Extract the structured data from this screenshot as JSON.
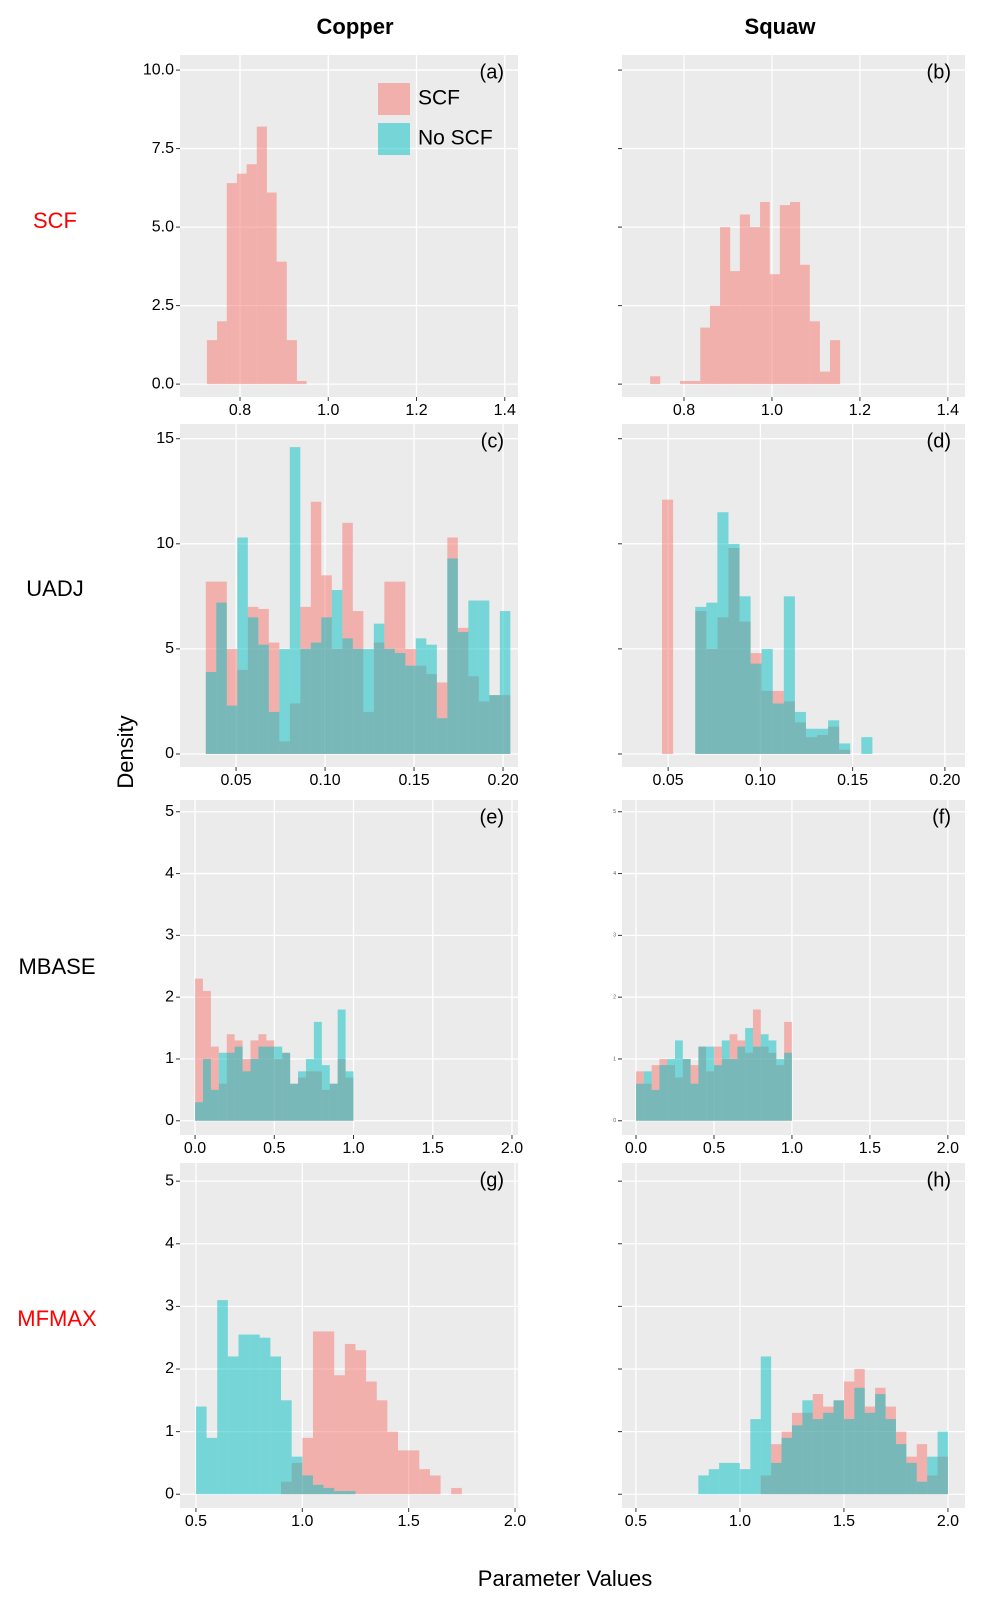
{
  "column_titles": [
    "Copper",
    "Squaw"
  ],
  "row_labels": [
    {
      "text": "SCF",
      "color": "#ff0000"
    },
    {
      "text": "UADJ",
      "color": "#000000"
    },
    {
      "text": "MBASE",
      "color": "#000000"
    },
    {
      "text": "MFMAX",
      "color": "#ff0000"
    }
  ],
  "ylabel": "Density",
  "xlabel": "Parameter Values",
  "chart_data": [
    {
      "type": "histogram",
      "label": "(a)",
      "legend": "top-right",
      "ytick_labels": true,
      "xlim": [
        0.664,
        1.43
      ],
      "xticks": [
        0.8,
        {
          "value": 1,
          "label": "1.0"
        },
        1.2,
        1.4
      ],
      "ylim": [
        -0.41,
        10.48
      ],
      "yticks": [
        {
          "value": 0,
          "label": "0.0"
        },
        2.5,
        {
          "value": 5,
          "label": "5.0"
        },
        7.5,
        {
          "value": 10,
          "label": "10.0"
        }
      ],
      "bins": [
        0.725,
        0.748,
        0.77,
        0.793,
        0.815,
        0.838,
        0.861,
        0.883,
        0.906,
        0.929,
        0.951
      ],
      "series": [
        {
          "name": "SCF",
          "color": "#F8766D",
          "values": [
            1.4,
            2.0,
            6.4,
            6.7,
            7.0,
            8.2,
            6.1,
            3.9,
            1.4,
            0.1
          ]
        },
        {
          "name": "No SCF",
          "color": "#00BFC4",
          "values": []
        }
      ]
    },
    {
      "type": "histogram",
      "label": "(b)",
      "ytick_labels": false,
      "xlim": [
        0.659,
        1.439
      ],
      "xticks": [
        0.8,
        {
          "value": 1,
          "label": "1.0"
        },
        1.2,
        1.4
      ],
      "ylim": [
        -0.41,
        10.48
      ],
      "yticks": [
        0,
        2.5,
        5,
        7.5,
        10
      ],
      "bins": [
        0.723,
        0.746,
        0.768,
        0.791,
        0.814,
        0.837,
        0.859,
        0.882,
        0.905,
        0.927,
        0.95,
        0.973,
        0.995,
        1.018,
        1.041,
        1.064,
        1.086,
        1.109,
        1.132,
        1.155
      ],
      "series": [
        {
          "color": "#F8766D",
          "values": [
            0.25,
            0,
            0,
            0.1,
            0.1,
            1.8,
            2.5,
            5.0,
            3.6,
            5.4,
            5.0,
            5.8,
            3.5,
            5.7,
            5.8,
            3.8,
            2.0,
            0.4,
            1.4
          ]
        }
      ]
    },
    {
      "type": "histogram",
      "label": "(c)",
      "ytick_labels": true,
      "xlim": [
        0.0185,
        0.2084
      ],
      "xticks": [
        0.05,
        {
          "value": 0.1,
          "label": "0.10"
        },
        0.15,
        {
          "value": 0.2,
          "label": "0.20"
        }
      ],
      "ylim": [
        -0.62,
        15.7
      ],
      "yticks": [
        0,
        5,
        10,
        15
      ],
      "bins": [
        0.033,
        0.0389,
        0.0448,
        0.0507,
        0.0566,
        0.0625,
        0.0684,
        0.0743,
        0.0802,
        0.0861,
        0.092,
        0.0979,
        0.1038,
        0.1097,
        0.1156,
        0.1215,
        0.1274,
        0.1333,
        0.1392,
        0.1451,
        0.151,
        0.1569,
        0.1628,
        0.1687,
        0.1746,
        0.1805,
        0.1864,
        0.1923,
        0.1982,
        0.2041
      ],
      "series": [
        {
          "color": "#F8766D",
          "values": [
            8.2,
            8.2,
            5.0,
            4.0,
            7.0,
            6.9,
            5.3,
            0.6,
            2.4,
            7.0,
            12.0,
            8.5,
            5.0,
            11.0,
            6.8,
            2.0,
            5.3,
            8.2,
            8.2,
            5.0,
            4.2,
            3.8,
            3.4,
            10.3,
            6.0,
            3.7,
            2.5,
            2.8,
            2.8
          ]
        },
        {
          "color": "#00BFC4",
          "values": [
            3.9,
            7.2,
            2.3,
            10.3,
            6.5,
            5.2,
            2.0,
            5.0,
            14.6,
            5.0,
            5.3,
            6.5,
            7.8,
            5.5,
            5.0,
            5.0,
            6.2,
            5.0,
            4.8,
            4.2,
            5.5,
            5.2,
            1.7,
            9.3,
            5.8,
            7.3,
            7.3,
            2.8,
            6.8
          ]
        }
      ]
    },
    {
      "type": "histogram",
      "label": "(d)",
      "ytick_labels": false,
      "xlim": [
        0.025,
        0.2109
      ],
      "xticks": [
        0.05,
        {
          "value": 0.1,
          "label": "0.10"
        },
        0.15,
        {
          "value": 0.2,
          "label": "0.20"
        }
      ],
      "ylim": [
        -0.62,
        15.7
      ],
      "yticks": [
        0,
        5,
        10,
        15
      ],
      "bins": [
        0.0467,
        0.0527,
        0.0587,
        0.0647,
        0.0707,
        0.0767,
        0.0827,
        0.0887,
        0.0947,
        0.1007,
        0.1067,
        0.1127,
        0.1187,
        0.1247,
        0.1307,
        0.1367,
        0.1427,
        0.1487,
        0.1547,
        0.1607
      ],
      "series": [
        {
          "color": "#F8766D",
          "values": [
            12.1,
            0,
            0,
            6.8,
            5.0,
            6.5,
            9.8,
            6.3,
            4.8,
            3.0,
            3.0,
            2.5,
            1.5,
            0.8,
            0.9,
            1.3,
            0.2,
            0,
            0
          ]
        },
        {
          "color": "#00BFC4",
          "values": [
            0,
            0,
            0,
            7.0,
            7.2,
            11.5,
            10.0,
            7.5,
            4.3,
            5.0,
            2.4,
            7.5,
            2.0,
            1.2,
            1.2,
            1.6,
            0.5,
            0,
            0.8
          ]
        }
      ]
    },
    {
      "type": "histogram",
      "label": "(e)",
      "ytick_labels": true,
      "xlim": [
        -0.095,
        2.038
      ],
      "xticks": [
        {
          "value": 0,
          "label": "0.0"
        },
        0.5,
        {
          "value": 1,
          "label": "1.0"
        },
        1.5,
        {
          "value": 2,
          "label": "2.0"
        }
      ],
      "ylim": [
        -0.23,
        5.19
      ],
      "yticks": [
        0,
        1,
        2,
        3,
        4,
        5
      ],
      "bins": [
        0,
        0.05,
        0.1,
        0.15,
        0.2,
        0.25,
        0.3,
        0.35,
        0.4,
        0.45,
        0.5,
        0.55,
        0.6,
        0.65,
        0.7,
        0.75,
        0.8,
        0.85,
        0.9,
        0.95,
        1
      ],
      "series": [
        {
          "color": "#F8766D",
          "values": [
            2.3,
            2.1,
            1.2,
            0.6,
            1.4,
            1.3,
            1.0,
            1.3,
            1.4,
            1.3,
            1.0,
            1.1,
            0.6,
            0.7,
            0.8,
            0.8,
            0.5,
            0.6,
            1.0,
            0.7
          ]
        },
        {
          "color": "#00BFC4",
          "values": [
            0.3,
            1.0,
            0.5,
            1.1,
            1.1,
            1.2,
            0.8,
            1.0,
            1.2,
            1.2,
            1.2,
            1.1,
            0.6,
            0.8,
            1.0,
            1.6,
            0.9,
            0.6,
            1.8,
            0.8
          ]
        }
      ]
    },
    {
      "type": "histogram",
      "label": "(f)",
      "ytick_labels": "small",
      "xlim": [
        -0.09,
        2.11
      ],
      "xticks": [
        {
          "value": 0,
          "label": "0.0"
        },
        0.5,
        {
          "value": 1,
          "label": "1.0"
        },
        1.5,
        {
          "value": 2,
          "label": "2.0"
        }
      ],
      "ylim": [
        -0.23,
        5.19
      ],
      "yticks": [
        0,
        1,
        2,
        3,
        4,
        5
      ],
      "bins": [
        0,
        0.05,
        0.1,
        0.15,
        0.2,
        0.25,
        0.3,
        0.35,
        0.4,
        0.45,
        0.5,
        0.55,
        0.6,
        0.65,
        0.7,
        0.75,
        0.8,
        0.85,
        0.9,
        0.95,
        1
      ],
      "series": [
        {
          "color": "#F8766D",
          "values": [
            0.8,
            0.6,
            0.9,
            1.0,
            0.9,
            0.7,
            1.0,
            0.9,
            1.2,
            0.8,
            1.2,
            1.0,
            1.4,
            1.3,
            1.1,
            1.8,
            1.2,
            1.1,
            0.9,
            1.6
          ]
        },
        {
          "color": "#00BFC4",
          "values": [
            0.6,
            0.8,
            0.5,
            0.9,
            1.0,
            1.3,
            1.0,
            0.6,
            1.2,
            1.2,
            0.9,
            1.3,
            1.0,
            1.2,
            1.5,
            1.2,
            1.4,
            1.3,
            1.0,
            1.1
          ]
        }
      ]
    },
    {
      "type": "histogram",
      "label": "(g)",
      "ytick_labels": true,
      "xlim": [
        0.425,
        2.014
      ],
      "xticks": [
        0.5,
        {
          "value": 1,
          "label": "1.0"
        },
        1.5,
        {
          "value": 2,
          "label": "2.0"
        }
      ],
      "ylim": [
        -0.22,
        5.29
      ],
      "yticks": [
        0,
        1,
        2,
        3,
        4,
        5
      ],
      "bins": [
        0.5,
        0.55,
        0.6,
        0.65,
        0.7,
        0.75,
        0.8,
        0.85,
        0.9,
        0.95,
        1,
        1.05,
        1.1,
        1.15,
        1.2,
        1.25,
        1.3,
        1.35,
        1.4,
        1.45,
        1.5,
        1.55,
        1.6,
        1.65,
        1.7,
        1.75
      ],
      "series": [
        {
          "color": "#F8766D",
          "values": [
            0,
            0,
            0,
            0,
            0,
            0,
            0,
            0,
            0.2,
            0.5,
            0.9,
            2.6,
            2.6,
            1.9,
            2.4,
            2.3,
            1.8,
            1.5,
            1.0,
            0.7,
            0.7,
            0.4,
            0.3,
            0,
            0.1
          ]
        },
        {
          "color": "#00BFC4",
          "values": [
            1.4,
            0.9,
            3.1,
            2.2,
            2.55,
            2.55,
            2.5,
            2.2,
            1.5,
            0.6,
            0.3,
            0.15,
            0.1,
            0.05,
            0.05,
            0,
            0,
            0,
            0,
            0,
            0,
            0,
            0,
            0,
            0
          ]
        }
      ]
    },
    {
      "type": "histogram",
      "label": "(h)",
      "ytick_labels": false,
      "xlim": [
        0.433,
        2.082
      ],
      "xticks": [
        0.5,
        {
          "value": 1,
          "label": "1.0"
        },
        1.5,
        {
          "value": 2,
          "label": "2.0"
        }
      ],
      "ylim": [
        -0.22,
        5.29
      ],
      "yticks": [
        0,
        1,
        2,
        3,
        4,
        5
      ],
      "bins": [
        0.8,
        0.85,
        0.9,
        0.95,
        1,
        1.05,
        1.1,
        1.15,
        1.2,
        1.25,
        1.3,
        1.35,
        1.4,
        1.45,
        1.5,
        1.55,
        1.6,
        1.65,
        1.7,
        1.75,
        1.8,
        1.85,
        1.9,
        1.95,
        2
      ],
      "series": [
        {
          "color": "#F8766D",
          "values": [
            0,
            0,
            0,
            0,
            0,
            0,
            0.3,
            0.8,
            1.0,
            1.3,
            1.3,
            1.6,
            1.4,
            1.5,
            1.8,
            2.0,
            1.4,
            1.7,
            1.4,
            1.0,
            0.6,
            0.8,
            0.3,
            0.6
          ]
        },
        {
          "color": "#00BFC4",
          "values": [
            0.3,
            0.4,
            0.5,
            0.5,
            0.4,
            1.2,
            2.2,
            0.5,
            0.9,
            1.1,
            1.5,
            1.2,
            1.3,
            1.5,
            1.2,
            1.7,
            1.3,
            1.6,
            1.2,
            0.8,
            0.5,
            0.2,
            0.6,
            1.0
          ]
        }
      ]
    }
  ]
}
